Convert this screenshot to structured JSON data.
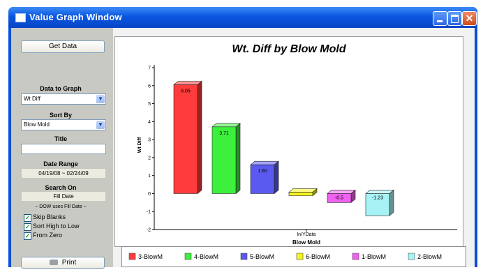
{
  "window": {
    "title": "Value Graph Window"
  },
  "sidebar": {
    "get_data_label": "Get Data",
    "data_to_graph_label": "Data to Graph",
    "data_to_graph_value": "Wt Diff",
    "sort_by_label": "Sort By",
    "sort_by_value": "Blow Mold",
    "title_label": "Title",
    "title_value": "",
    "date_range_label": "Date Range",
    "date_range_value": "04/19/08 ~ 02/24/09",
    "search_on_label": "Search On",
    "search_on_value": "Fill Date",
    "note": "~ DOW uses Fill Date ~",
    "checkboxes": [
      {
        "label": "Skip Blanks",
        "checked": true
      },
      {
        "label": "Sort High to Low",
        "checked": true
      },
      {
        "label": "From Zero",
        "checked": true
      }
    ],
    "print_label": "Print"
  },
  "chart_data": {
    "type": "bar",
    "title": "Wt. Diff by Blow Mold",
    "xlabel": "Blow Mold",
    "ylabel": "Wt Diff",
    "x_tick_label": "ln/YData",
    "ylim": [
      -2,
      7
    ],
    "yticks": [
      -2,
      -1,
      0,
      1,
      2,
      3,
      4,
      5,
      6,
      7
    ],
    "grid": false,
    "legend_position": "bottom",
    "categories": [
      "3-BlowM",
      "4-BlowM",
      "5-BlowM",
      "6-BlowM",
      "1-BlowM",
      "2-BlowM"
    ],
    "values": [
      6.05,
      3.71,
      1.6,
      0.0,
      -0.5,
      -1.23
    ],
    "labels": [
      "6.05",
      "3.71",
      "1.60",
      "",
      "-0.5",
      "-1.23"
    ],
    "colors": [
      "#ff3b3b",
      "#3df03d",
      "#5a5af0",
      "#f5f51e",
      "#f061f0",
      "#a6f2f4"
    ]
  }
}
